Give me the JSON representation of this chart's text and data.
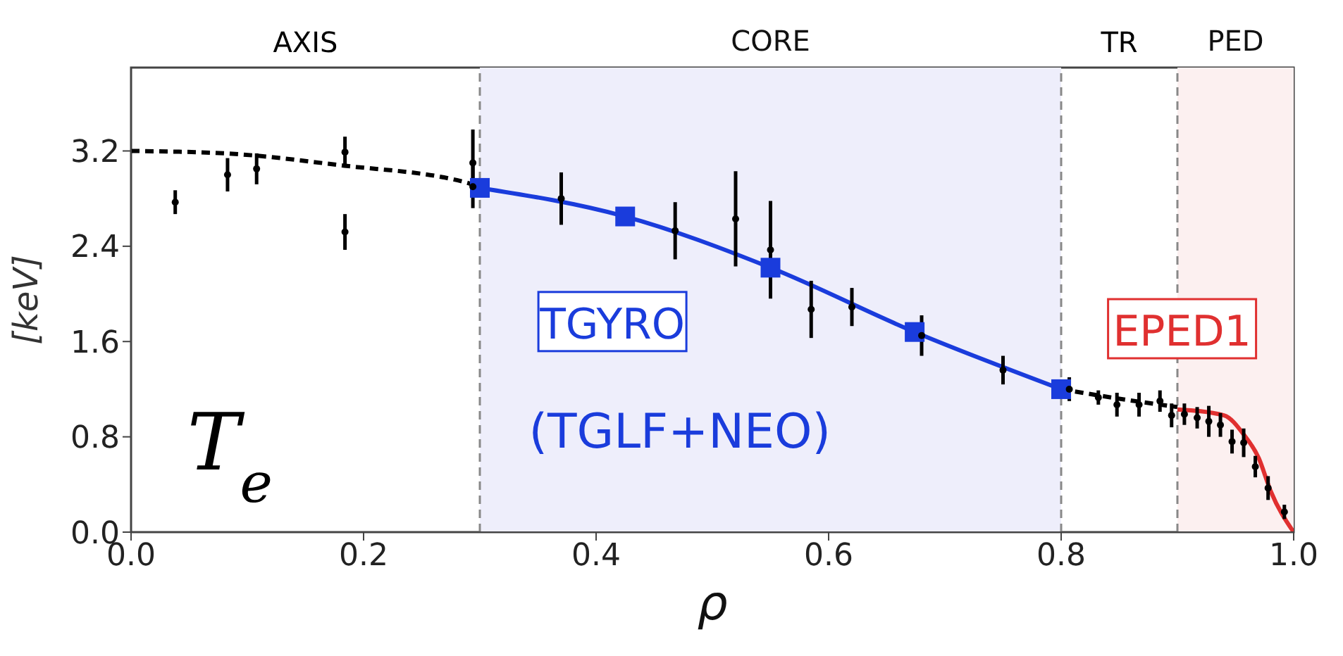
{
  "chart_data": {
    "type": "line",
    "xlabel": "ρ",
    "ylabel": "[keV]",
    "xlim": [
      0,
      1
    ],
    "xticks": [
      {
        "value": 0,
        "label": "0.0"
      },
      0.2,
      0.4,
      0.6,
      0.8,
      {
        "value": 1,
        "label": "1.0"
      }
    ],
    "ylim": [
      0,
      3.9
    ],
    "yticks": [
      {
        "value": 0,
        "label": "0.0"
      },
      0.8,
      1.6,
      2.4,
      3.2
    ],
    "grid": false,
    "legend": false,
    "series": [
      {
        "color": "#000000",
        "line_style": "dashed",
        "marker": "none",
        "x": [
          0,
          0.08,
          0.18,
          0.29,
          0.3
        ],
        "values": [
          3.2,
          3.18,
          3.08,
          2.93,
          2.89
        ]
      },
      {
        "color": "#1a3cdc",
        "line_style": "solid",
        "marker": "square",
        "x": [
          0.3,
          0.425,
          0.55,
          0.674,
          0.8
        ],
        "values": [
          2.89,
          2.65,
          2.22,
          1.68,
          1.2
        ]
      },
      {
        "color": "#000000",
        "line_style": "dashed",
        "marker": "none",
        "x": [
          0.8,
          0.85,
          0.9
        ],
        "values": [
          1.2,
          1.12,
          1.05
        ]
      },
      {
        "color": "#e03030",
        "line_style": "solid",
        "marker": "none",
        "x": [
          0.9,
          0.94,
          0.957,
          0.97,
          0.98,
          1.0
        ],
        "values": [
          1.03,
          0.98,
          0.82,
          0.62,
          0.35,
          0
        ]
      },
      {
        "type": "scatter",
        "color": "#000000",
        "marker": "circle",
        "x": [
          0.038,
          0.083,
          0.108,
          0.184,
          0.184,
          0.294,
          0.294,
          0.37,
          0.468,
          0.52,
          0.55,
          0.585,
          0.62,
          0.68,
          0.75,
          0.807,
          0.832,
          0.848,
          0.867,
          0.885,
          0.895,
          0.906,
          0.917,
          0.927,
          0.937,
          0.947,
          0.957,
          0.967,
          0.978,
          0.992
        ],
        "values": [
          2.77,
          3.0,
          3.05,
          3.19,
          2.52,
          3.1,
          2.9,
          2.8,
          2.53,
          2.63,
          2.37,
          1.87,
          1.89,
          1.65,
          1.36,
          1.2,
          1.13,
          1.07,
          1.07,
          1.1,
          0.98,
          0.99,
          0.96,
          0.93,
          0.9,
          0.76,
          0.75,
          0.55,
          0.37,
          0.17
        ],
        "errors": [
          0.1,
          0.14,
          0.13,
          0.13,
          0.15,
          0.28,
          0.18,
          0.22,
          0.24,
          0.4,
          0.41,
          0.24,
          0.16,
          0.17,
          0.12,
          0.1,
          0.06,
          0.1,
          0.1,
          0.09,
          0.1,
          0.09,
          0.09,
          0.13,
          0.1,
          0.1,
          0.12,
          0.09,
          0.1,
          0.06
        ]
      }
    ],
    "bands": [
      {
        "axis": "x",
        "from": 0.3,
        "to": 0.8,
        "label": "CORE",
        "color": "#eeeefb"
      },
      {
        "axis": "x",
        "from": 0.9,
        "to": 1.0,
        "label": "PED",
        "color": "#fcf0f0"
      }
    ],
    "ref_lines": [
      {
        "axis": "x",
        "value": 0.3,
        "color": "#888888",
        "line_style": "dashed"
      },
      {
        "axis": "x",
        "value": 0.8,
        "color": "#888888",
        "line_style": "dashed"
      },
      {
        "axis": "x",
        "value": 0.9,
        "color": "#888888",
        "line_style": "dashed"
      }
    ],
    "annotations": [
      "TGYRO",
      "(TGLF+NEO)",
      "EPED1",
      "T$_{e}$",
      "AXIS",
      "TR"
    ]
  }
}
